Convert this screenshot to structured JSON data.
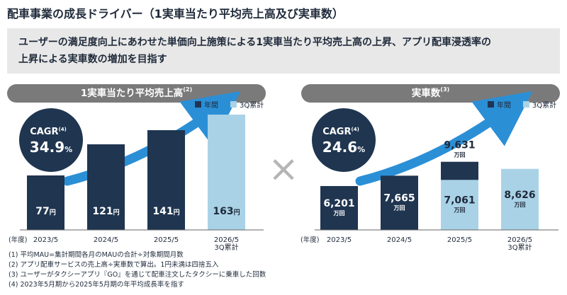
{
  "title": "配車事業の成長ドライバー（1実車当たり平均売上高及び実車数）",
  "summary": [
    "ユーザーの満足度向上にあわせた単価向上施策による1実車当たり平均売上高の上昇、アプリ配車浸透率の",
    "上昇による実車数の増加を目指す"
  ],
  "colors": {
    "annual": "#1f3550",
    "q3": "#a9d2e6",
    "header": "#7a7a7a",
    "arrow": "#2b8fd6",
    "times": "#b5b5b5"
  },
  "multiply_symbol": "×",
  "legend": {
    "annual": "年間",
    "q3": "3Q累計"
  },
  "year_unit": "(年度)",
  "chart_data": [
    {
      "type": "bar",
      "title": "1実車当たり平均売上高",
      "title_note": "(2)",
      "cagr_label": "CAGR",
      "cagr_note": "(4)",
      "cagr_value": "34.9",
      "cagr_unit": "%",
      "categories": [
        "2023/5",
        "2024/5",
        "2025/5",
        "2026/5\n3Q累計"
      ],
      "values": [
        77,
        121,
        141,
        163
      ],
      "value_labels": [
        "77",
        "121",
        "141",
        "163"
      ],
      "unit": "円",
      "series_type": [
        "annual",
        "annual",
        "annual",
        "q3"
      ]
    },
    {
      "type": "bar",
      "title": "実車数",
      "title_note": "(3)",
      "cagr_label": "CAGR",
      "cagr_note": "(4)",
      "cagr_value": "24.6",
      "cagr_unit": "%",
      "categories": [
        "2023/5",
        "2024/5",
        "2025/5",
        "2026/5\n3Q累計"
      ],
      "values": [
        6201,
        7665,
        9631,
        8626
      ],
      "value_labels": [
        "6,201",
        "7,665",
        "9,631",
        "8,626"
      ],
      "unit": "万回",
      "stack_inner": {
        "index": 2,
        "value": 7061,
        "label": "7,061"
      },
      "series_type": [
        "annual",
        "annual",
        "annual",
        "q3"
      ]
    }
  ],
  "footnotes": [
    "(1) 平均MAU=集計期間各月のMAUの合計÷対象期間月数",
    "(2) アプリ配車サービスの売上高÷実車数で算出。1円未満は四捨五入",
    "(3) ユーザーがタクシーアプリ『GO』を通じて配車注文したタクシーに乗車した回数",
    "(4) 2023年5月期から2025年5月期の年平均成長率を指す"
  ]
}
